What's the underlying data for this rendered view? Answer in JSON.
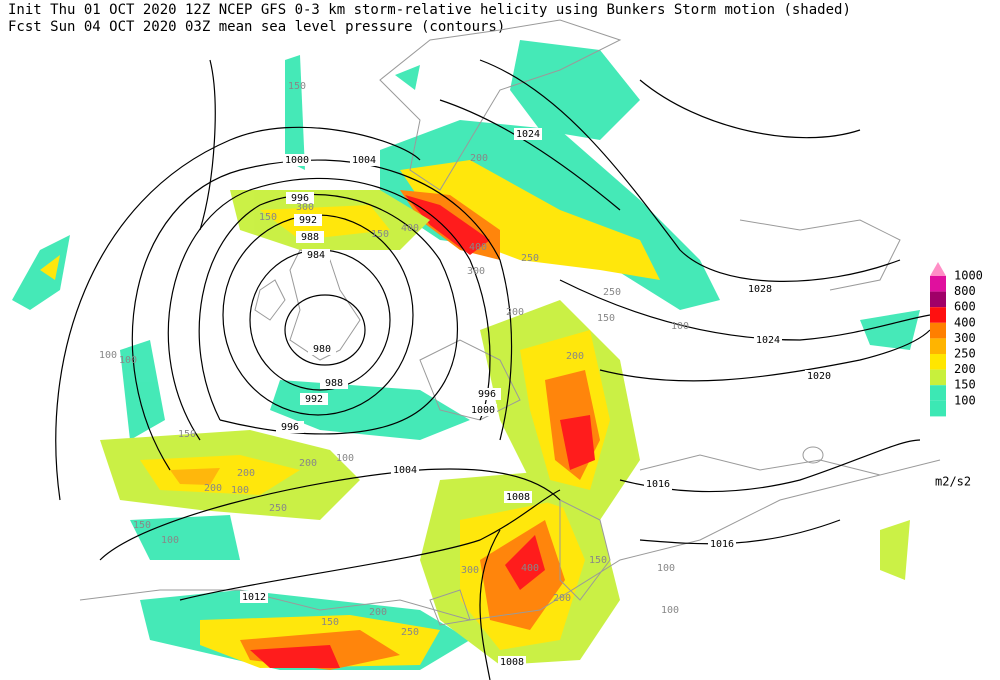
{
  "header": {
    "line1": "Init  Thu 01 OCT 2020 12Z  NCEP GFS 0-3 km storm-relative helicity using Bunkers Storm motion (shaded)",
    "line2": "Fcst Sun 04 OCT 2020 03Z  mean sea level pressure (contours)"
  },
  "legend": {
    "items": [
      {
        "label": "1000",
        "color": "#ff8ec6"
      },
      {
        "label": "800",
        "color": "#e0109e"
      },
      {
        "label": "600",
        "color": "#a00068"
      },
      {
        "label": "400",
        "color": "#ff1010"
      },
      {
        "label": "300",
        "color": "#ff7f00"
      },
      {
        "label": "250",
        "color": "#ffb400"
      },
      {
        "label": "200",
        "color": "#ffe600"
      },
      {
        "label": "150",
        "color": "#c8f03c"
      },
      {
        "label": "100",
        "color": "#3ce8b4"
      }
    ],
    "unit": "m2/s2"
  },
  "contour_labels": [
    "1024",
    "1000",
    "1004",
    "996",
    "992",
    "988",
    "984",
    "980",
    "988",
    "992",
    "996",
    "996",
    "1000",
    "1004",
    "1008",
    "1012",
    "1008",
    "1016",
    "1016",
    "1020",
    "1024",
    "1028"
  ],
  "shade_labels": [
    "150",
    "150",
    "100",
    "100",
    "200",
    "200",
    "300",
    "150",
    "400",
    "400",
    "300",
    "250",
    "200",
    "200",
    "200",
    "250",
    "150",
    "100",
    "150",
    "100",
    "100",
    "200",
    "150",
    "250",
    "100",
    "400",
    "300",
    "200",
    "250",
    "150",
    "100",
    "200",
    "150",
    "100"
  ]
}
